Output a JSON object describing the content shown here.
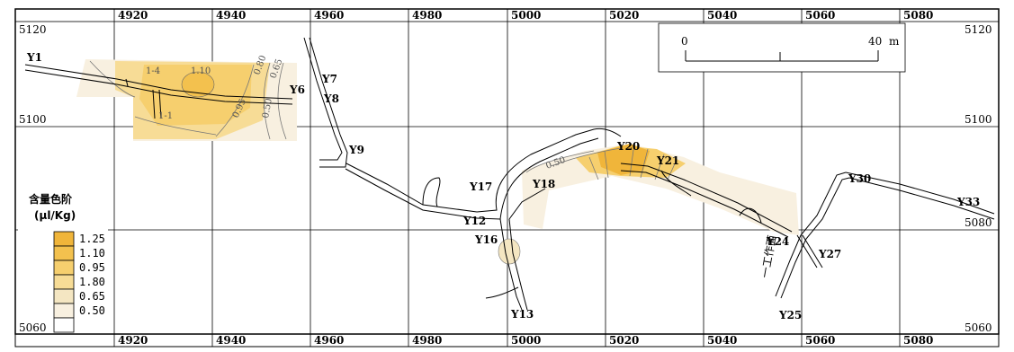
{
  "map": {
    "top_ticks": [
      "4920",
      "4940",
      "4960",
      "4980",
      "5000",
      "5020",
      "5040",
      "5060",
      "5080"
    ],
    "bottom_ticks": [
      "4920",
      "4940",
      "4960",
      "4980",
      "5000",
      "5020",
      "5040",
      "5060",
      "5080"
    ],
    "left_ticks": [
      "5120",
      "5100",
      "5080",
      "5060"
    ],
    "right_ticks": [
      "5120",
      "5100",
      "5080",
      "5060"
    ],
    "points": {
      "Y1": "Y1",
      "Y6": "Y6",
      "Y7": "Y7",
      "Y8": "Y8",
      "Y9": "Y9",
      "Y12": "Y12",
      "Y13": "Y13",
      "Y16": "Y16",
      "Y17": "Y17",
      "Y18": "Y18",
      "Y20": "Y20",
      "Y21": "Y21",
      "Y24": "Y24",
      "Y25": "Y25",
      "Y27": "Y27",
      "Y30": "Y30",
      "Y33": "Y33"
    },
    "contour_labels": [
      "1-4",
      "1.10",
      "0.80",
      "0.65",
      "0.95",
      "0.50",
      "1-1",
      "0.50"
    ],
    "side_text": "一工作面",
    "scale": {
      "start": "0",
      "end": "40",
      "unit": "m"
    },
    "legend": {
      "title": "含量色阶",
      "unit": "(μl/Kg)",
      "items": [
        {
          "label": "1.25",
          "color": "#f0b53a"
        },
        {
          "label": "1.10",
          "color": "#f3c14e"
        },
        {
          "label": "0.95",
          "color": "#f6cf6e"
        },
        {
          "label": "1.80",
          "color": "#f7dc96"
        },
        {
          "label": "0.65",
          "color": "#f4e6c2"
        },
        {
          "label": "0.50",
          "color": "#f8f0e0"
        },
        {
          "label": "",
          "color": "#ffffff"
        }
      ]
    }
  }
}
